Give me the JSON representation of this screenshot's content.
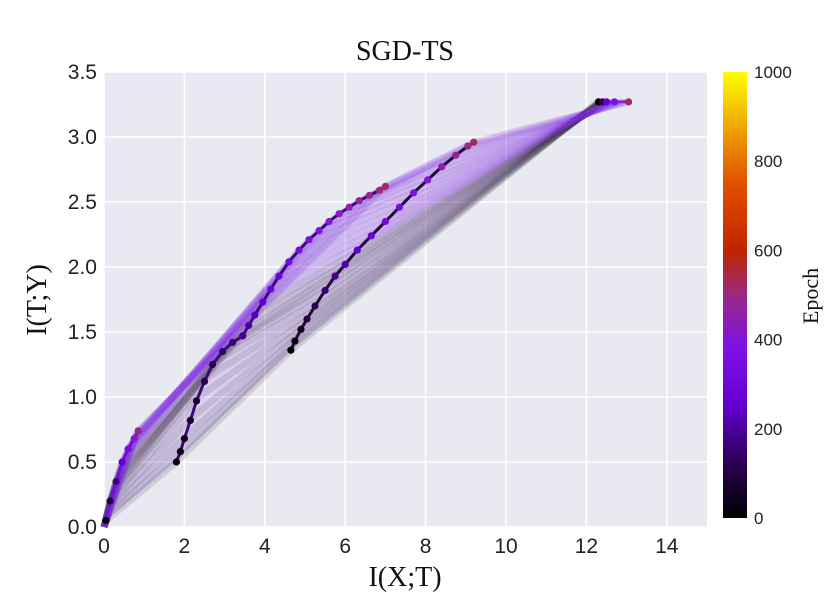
{
  "chart_data": {
    "type": "scatter",
    "title": "SGD-TS",
    "xlabel": "I(X;T)",
    "ylabel": "I(T;Y)",
    "xlim": [
      0,
      15
    ],
    "ylim": [
      0,
      3.5
    ],
    "xticks": [
      "0",
      "2",
      "4",
      "6",
      "8",
      "10",
      "12",
      "14"
    ],
    "yticks": [
      "0.0",
      "0.5",
      "1.0",
      "1.5",
      "2.0",
      "2.5",
      "3.0",
      "3.5"
    ],
    "grid": true,
    "background": "#e9e9f1",
    "colorbar": {
      "label": "Epoch",
      "range": [
        0,
        1000
      ],
      "ticks": [
        "0",
        "200",
        "400",
        "600",
        "800",
        "1000"
      ],
      "colormap": "gnuplot"
    },
    "series": [
      {
        "layer": 1,
        "x": [
          0.05,
          0.15,
          0.3,
          0.45,
          0.6,
          0.75,
          0.85
        ],
        "y": [
          0.05,
          0.2,
          0.35,
          0.5,
          0.6,
          0.68,
          0.74
        ],
        "epoch": [
          0,
          40,
          80,
          120,
          160,
          200,
          230
        ],
        "color": "#6a10d0"
      },
      {
        "layer": 2,
        "x": [
          1.8,
          1.9,
          2.0,
          2.15,
          2.3,
          2.5,
          2.7,
          2.95,
          3.2,
          3.45,
          3.6,
          3.75,
          3.95,
          4.15,
          4.35,
          4.6,
          4.85,
          5.1,
          5.35,
          5.6,
          5.85,
          6.1,
          6.35,
          6.6,
          6.85,
          7.0
        ],
        "y": [
          0.5,
          0.58,
          0.68,
          0.82,
          0.97,
          1.12,
          1.25,
          1.35,
          1.42,
          1.47,
          1.55,
          1.63,
          1.73,
          1.83,
          1.93,
          2.04,
          2.13,
          2.21,
          2.28,
          2.35,
          2.41,
          2.46,
          2.51,
          2.55,
          2.59,
          2.62
        ],
        "epoch": [
          0,
          10,
          20,
          30,
          40,
          50,
          60,
          70,
          80,
          90,
          100,
          110,
          120,
          130,
          140,
          150,
          160,
          170,
          180,
          190,
          200,
          210,
          220,
          230,
          240,
          250
        ],
        "color": "#3a0878"
      },
      {
        "layer": 3,
        "x": [
          4.65,
          4.75,
          4.9,
          5.05,
          5.25,
          5.5,
          5.75,
          6.0,
          6.3,
          6.65,
          7.0,
          7.35,
          7.7,
          8.05,
          8.4,
          8.75,
          9.05,
          9.2
        ],
        "y": [
          1.36,
          1.43,
          1.52,
          1.6,
          1.7,
          1.82,
          1.93,
          2.02,
          2.13,
          2.24,
          2.35,
          2.46,
          2.57,
          2.67,
          2.77,
          2.86,
          2.93,
          2.96
        ],
        "epoch": [
          0,
          15,
          30,
          45,
          60,
          75,
          90,
          105,
          120,
          135,
          150,
          165,
          180,
          195,
          210,
          225,
          240,
          250
        ],
        "color": "#24063f"
      },
      {
        "layer": 4,
        "x": [
          12.3,
          12.4,
          12.5,
          12.7,
          13.05
        ],
        "y": [
          3.27,
          3.27,
          3.27,
          3.27,
          3.27
        ],
        "epoch": [
          0,
          60,
          120,
          180,
          250
        ],
        "color": "#8a1bf0"
      }
    ]
  }
}
